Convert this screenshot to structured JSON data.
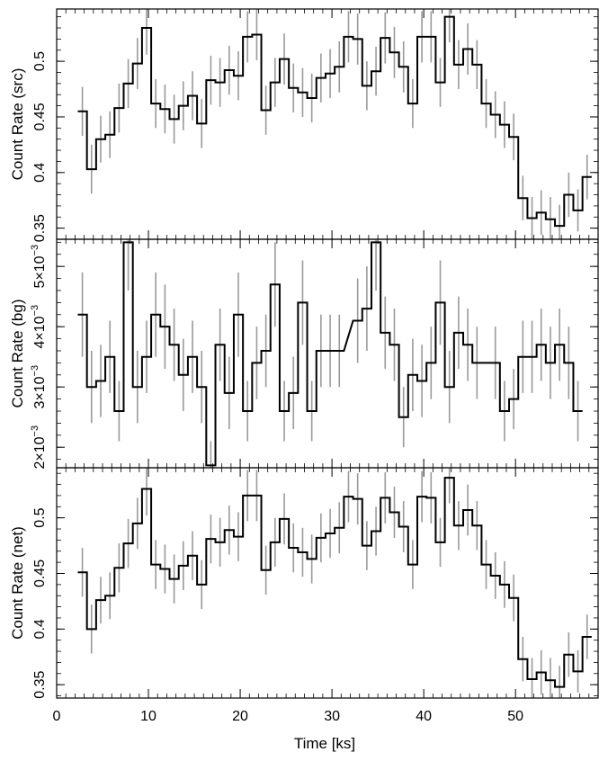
{
  "chart_data": {
    "type": "line",
    "subtype": "step",
    "xlabel": "Time [ks]",
    "xlim": [
      0,
      59
    ],
    "x_ticks": [
      0,
      10,
      20,
      30,
      40,
      50
    ],
    "x_tick_labels": [
      "0",
      "10",
      "20",
      "30",
      "40",
      "50"
    ],
    "bin_starts": [
      2.3,
      3.3,
      4.3,
      5.3,
      6.3,
      7.3,
      8.3,
      9.3,
      10.3,
      11.3,
      12.3,
      13.3,
      14.3,
      15.3,
      16.3,
      17.3,
      18.3,
      19.3,
      20.3,
      21.3,
      22.3,
      23.3,
      24.3,
      25.3,
      26.3,
      27.3,
      28.3,
      29.3,
      30.3,
      31.3,
      32.3,
      33.3,
      34.3,
      35.3,
      36.3,
      37.3,
      38.3,
      39.3,
      40.3,
      41.3,
      42.3,
      43.3,
      44.3,
      45.3,
      46.3,
      47.3,
      48.3,
      49.3,
      50.3,
      51.3,
      52.3,
      53.3,
      54.3,
      55.3,
      56.3,
      57.3
    ],
    "bin_width": 1.0,
    "panels": [
      {
        "name": "src",
        "ylabel": "Count Rate (src)",
        "ylim": [
          0.34,
          0.547
        ],
        "tick_labels": [
          "0.35",
          "0.4",
          "0.45",
          "0.5"
        ],
        "tick_values": [
          0.35,
          0.4,
          0.45,
          0.5
        ],
        "values": [
          0.455,
          0.403,
          0.43,
          0.434,
          0.458,
          0.48,
          0.498,
          0.53,
          0.462,
          0.457,
          0.448,
          0.46,
          0.469,
          0.444,
          0.483,
          0.481,
          0.492,
          0.487,
          0.522,
          0.524,
          0.456,
          0.481,
          0.502,
          0.476,
          0.472,
          0.467,
          0.485,
          0.489,
          0.495,
          0.522,
          0.52,
          0.478,
          0.491,
          0.521,
          0.508,
          0.495,
          0.462,
          0.522,
          0.522,
          0.481,
          0.54,
          0.497,
          0.511,
          0.497,
          0.462,
          0.452,
          0.443,
          0.432,
          0.377,
          0.359,
          0.364,
          0.358,
          0.352,
          0.38,
          0.366,
          0.396
        ],
        "errors": [
          0.022,
          0.022,
          0.021,
          0.021,
          0.022,
          0.022,
          0.023,
          0.024,
          0.022,
          0.022,
          0.022,
          0.022,
          0.022,
          0.022,
          0.022,
          0.022,
          0.022,
          0.022,
          0.023,
          0.023,
          0.022,
          0.022,
          0.023,
          0.022,
          0.022,
          0.022,
          0.022,
          0.022,
          0.023,
          0.023,
          0.023,
          0.022,
          0.022,
          0.023,
          0.023,
          0.023,
          0.022,
          0.023,
          0.023,
          0.022,
          0.023,
          0.022,
          0.023,
          0.022,
          0.022,
          0.021,
          0.021,
          0.021,
          0.02,
          0.019,
          0.02,
          0.02,
          0.019,
          0.02,
          0.019,
          0.02
        ]
      },
      {
        "name": "bg",
        "ylabel": "Count Rate (bg)",
        "ylim": [
          0.00166,
          0.00545
        ],
        "tick_values": [
          0.002,
          0.003,
          0.004,
          0.005
        ],
        "tick_labels": [
          {
            "mantissa": "2",
            "times": "×10",
            "exponent": "−3"
          },
          {
            "mantissa": "3",
            "times": "×10",
            "exponent": "−3"
          },
          {
            "mantissa": "4",
            "times": "×10",
            "exponent": "−3"
          },
          {
            "mantissa": "5",
            "times": "×10",
            "exponent": "−3"
          }
        ],
        "values": [
          0.0042,
          0.003,
          0.0031,
          0.0035,
          0.0026,
          0.0054,
          0.003,
          0.0035,
          0.0042,
          0.004,
          0.0037,
          0.0032,
          0.0035,
          0.003,
          0.0017,
          0.0037,
          0.0029,
          0.0042,
          0.0026,
          0.0034,
          0.0036,
          0.0047,
          0.0026,
          0.0029,
          0.0044,
          0.0026,
          0.0036,
          0.0036,
          0.0036,
          0.0041,
          0.0043,
          0.0054,
          0.0039,
          0.0037,
          0.0025,
          0.0032,
          0.0031,
          0.0034,
          0.0044,
          0.003,
          0.0039,
          0.0037,
          0.0034,
          0.0034,
          0.0026,
          0.0028,
          0.0035,
          0.0035,
          0.0037,
          0.0034,
          0.0037,
          0.0034,
          0.0026
        ],
        "errors": [
          0.0007,
          0.0006,
          0.0006,
          0.0006,
          0.0005,
          0.0008,
          0.0006,
          0.0006,
          0.0007,
          0.0007,
          0.0006,
          0.0006,
          0.0006,
          0.0006,
          0.0004,
          0.0006,
          0.0006,
          0.0007,
          0.0005,
          0.0006,
          0.0006,
          0.0007,
          0.0005,
          0.0006,
          0.0007,
          0.0005,
          0.0006,
          0.0006,
          0.0006,
          0.0007,
          0.0007,
          0.0008,
          0.0006,
          0.0006,
          0.0005,
          0.0006,
          0.0006,
          0.0006,
          0.0007,
          0.0006,
          0.0006,
          0.0006,
          0.0006,
          0.0006,
          0.0005,
          0.0005,
          0.0006,
          0.0006,
          0.0006,
          0.0006,
          0.0006,
          0.0006,
          0.0005
        ],
        "bin_starts": [
          2.3,
          3.3,
          4.3,
          5.3,
          6.3,
          7.3,
          8.3,
          9.3,
          10.3,
          11.3,
          12.3,
          13.3,
          14.3,
          15.3,
          16.3,
          17.3,
          18.3,
          19.3,
          20.3,
          21.3,
          22.3,
          23.3,
          24.3,
          25.3,
          26.3,
          27.3,
          28.3,
          29.3,
          30.3,
          32.3,
          33.3,
          34.3,
          35.3,
          36.3,
          37.3,
          38.3,
          39.3,
          40.3,
          41.3,
          42.3,
          43.3,
          44.3,
          45.3,
          47.3,
          48.3,
          49.3,
          50.3,
          51.3,
          52.3,
          53.3,
          54.3,
          55.3,
          56.3
        ]
      },
      {
        "name": "net",
        "ylabel": "Count Rate (net)",
        "ylim": [
          0.338,
          0.545
        ],
        "tick_labels": [
          "0.35",
          "0.4",
          "0.45",
          "0.5"
        ],
        "tick_values": [
          0.35,
          0.4,
          0.45,
          0.5
        ],
        "values": [
          0.451,
          0.4,
          0.426,
          0.43,
          0.455,
          0.477,
          0.495,
          0.526,
          0.458,
          0.454,
          0.445,
          0.457,
          0.466,
          0.44,
          0.481,
          0.478,
          0.489,
          0.483,
          0.52,
          0.52,
          0.453,
          0.478,
          0.499,
          0.473,
          0.469,
          0.463,
          0.482,
          0.486,
          0.491,
          0.519,
          0.517,
          0.475,
          0.488,
          0.518,
          0.505,
          0.492,
          0.458,
          0.519,
          0.518,
          0.478,
          0.536,
          0.493,
          0.507,
          0.493,
          0.458,
          0.448,
          0.44,
          0.428,
          0.373,
          0.355,
          0.361,
          0.354,
          0.348,
          0.377,
          0.362,
          0.393
        ],
        "errors": [
          0.022,
          0.022,
          0.021,
          0.021,
          0.022,
          0.022,
          0.023,
          0.024,
          0.022,
          0.022,
          0.022,
          0.022,
          0.022,
          0.022,
          0.022,
          0.022,
          0.022,
          0.022,
          0.023,
          0.023,
          0.022,
          0.022,
          0.023,
          0.022,
          0.022,
          0.022,
          0.022,
          0.022,
          0.023,
          0.023,
          0.023,
          0.022,
          0.022,
          0.023,
          0.023,
          0.023,
          0.022,
          0.023,
          0.023,
          0.022,
          0.023,
          0.022,
          0.023,
          0.022,
          0.022,
          0.021,
          0.021,
          0.021,
          0.02,
          0.019,
          0.02,
          0.02,
          0.019,
          0.02,
          0.019,
          0.02
        ]
      }
    ],
    "colors": {
      "line": "#000000",
      "error_bar": "#9a9a9a",
      "frame": "#000000"
    },
    "grid": false,
    "legend": "none"
  }
}
